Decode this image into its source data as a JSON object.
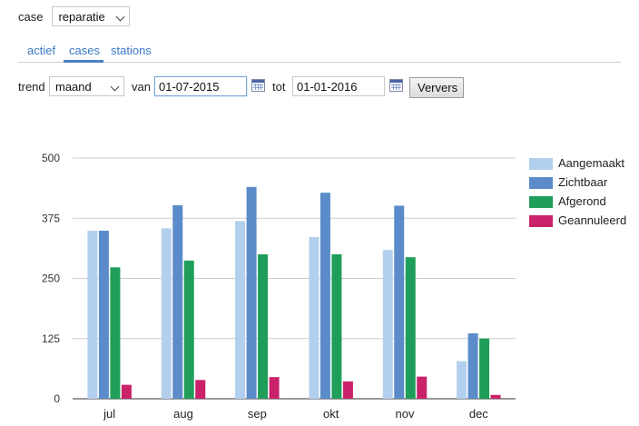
{
  "filter": {
    "case_label": "case",
    "case_value": "reparatie"
  },
  "tabs": [
    {
      "label": "actief"
    },
    {
      "label": "cases"
    },
    {
      "label": "stations"
    }
  ],
  "controls": {
    "trend_label": "trend",
    "trend_value": "maand",
    "from_label": "van",
    "from_value": "01-07-2015",
    "to_label": "tot",
    "to_value": "01-01-2016",
    "refresh_label": "Ververs"
  },
  "colors": {
    "aangemaakt": "#b3cfee",
    "zichtbaar": "#5b8cc9",
    "afgerond": "#1f9e5a",
    "geannuleerd": "#c9226b"
  },
  "chart_data": {
    "type": "bar",
    "title": "",
    "xlabel": "",
    "ylabel": "",
    "ylim": [
      0,
      500
    ],
    "yticks": [
      0,
      125,
      250,
      375,
      500
    ],
    "categories": [
      "jul",
      "aug",
      "sep",
      "okt",
      "nov",
      "dec"
    ],
    "series": [
      {
        "name": "Aangemaakt",
        "color": "#b3cfee",
        "values": [
          349,
          354,
          369,
          336,
          309,
          78
        ]
      },
      {
        "name": "Zichtbaar",
        "color": "#5b8cc9",
        "values": [
          349,
          402,
          440,
          428,
          401,
          136
        ]
      },
      {
        "name": "Afgerond",
        "color": "#1f9e5a",
        "values": [
          273,
          287,
          300,
          300,
          294,
          125
        ]
      },
      {
        "name": "Geannuleerd",
        "color": "#c9226b",
        "values": [
          29,
          39,
          45,
          36,
          46,
          8
        ]
      }
    ],
    "grid": true,
    "legend_position": "right"
  }
}
